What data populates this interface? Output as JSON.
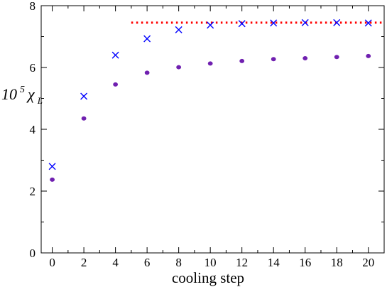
{
  "chart_data": {
    "type": "scatter",
    "xlabel": "cooling step",
    "ylabel": {
      "prefix": "10",
      "exponent": "5",
      "symbol": "χ",
      "subscript": "L"
    },
    "xlim": [
      -0.7,
      21
    ],
    "ylim": [
      0,
      8
    ],
    "xticks": [
      0,
      2,
      4,
      6,
      8,
      10,
      12,
      14,
      16,
      18,
      20
    ],
    "yticks": [
      0,
      2,
      4,
      6,
      8
    ],
    "grid": false,
    "series": [
      {
        "marker": "x",
        "color": "#0000ff",
        "x": [
          0,
          2,
          4,
          6,
          8,
          10,
          12,
          14,
          16,
          18,
          20
        ],
        "y": [
          2.8,
          5.07,
          6.4,
          6.93,
          7.22,
          7.37,
          7.42,
          7.44,
          7.45,
          7.45,
          7.44
        ]
      },
      {
        "marker": "dot",
        "color": "#7020b0",
        "x": [
          0,
          2,
          4,
          6,
          8,
          10,
          12,
          14,
          16,
          18,
          20
        ],
        "y": [
          2.37,
          4.35,
          5.45,
          5.83,
          6.01,
          6.13,
          6.21,
          6.27,
          6.3,
          6.34,
          6.37
        ]
      }
    ],
    "reference_line": {
      "style": "dotted",
      "color": "#ff0000",
      "y": 7.45,
      "x_start": 5,
      "x_end": 21
    }
  }
}
